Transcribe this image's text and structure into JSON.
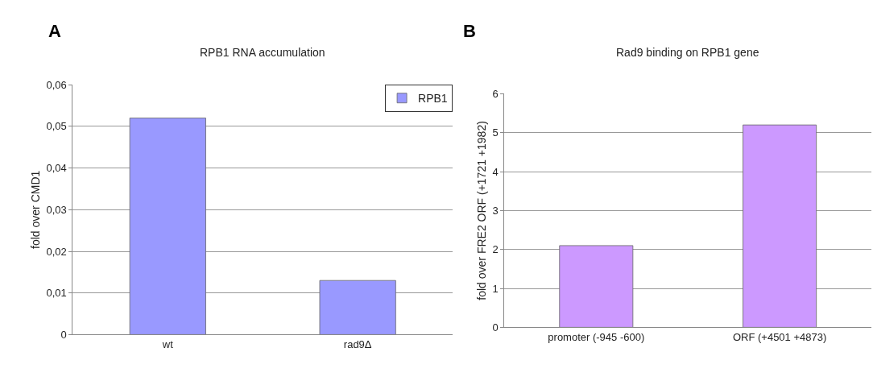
{
  "chart_data": [
    {
      "type": "bar",
      "title": "RPB1 RNA accumulation",
      "ylabel": "fold over CMD1",
      "categories": [
        "wt",
        "rad9Δ"
      ],
      "series": [
        {
          "name": "RPB1",
          "color": "#9999ff",
          "values": [
            0.052,
            0.013
          ]
        }
      ],
      "ylim": [
        0,
        0.06
      ],
      "yticks": [
        0,
        {
          "value": 0.01,
          "label": "0,01"
        },
        {
          "value": 0.02,
          "label": "0,02"
        },
        {
          "value": 0.03,
          "label": "0,03"
        },
        {
          "value": 0.04,
          "label": "0,04"
        },
        {
          "value": 0.05,
          "label": "0,05"
        },
        {
          "value": 0.06,
          "label": "0,06"
        }
      ],
      "grid": "y",
      "legend": "top right",
      "annotations": [
        "A"
      ]
    },
    {
      "type": "bar",
      "title": "Rad9 binding on RPB1 gene",
      "ylabel": "fold over FRE2 ORF (+1721 +1982)",
      "categories": [
        "promoter (-945 -600)",
        "ORF (+4501 +4873)"
      ],
      "series": [
        {
          "color": "#cc99ff",
          "values": [
            2.1,
            5.2
          ]
        }
      ],
      "ylim": [
        0,
        6
      ],
      "yticks": [
        0,
        1,
        2,
        3,
        4,
        5,
        6
      ],
      "grid": "y",
      "legend": false,
      "annotations": [
        "B"
      ]
    }
  ]
}
